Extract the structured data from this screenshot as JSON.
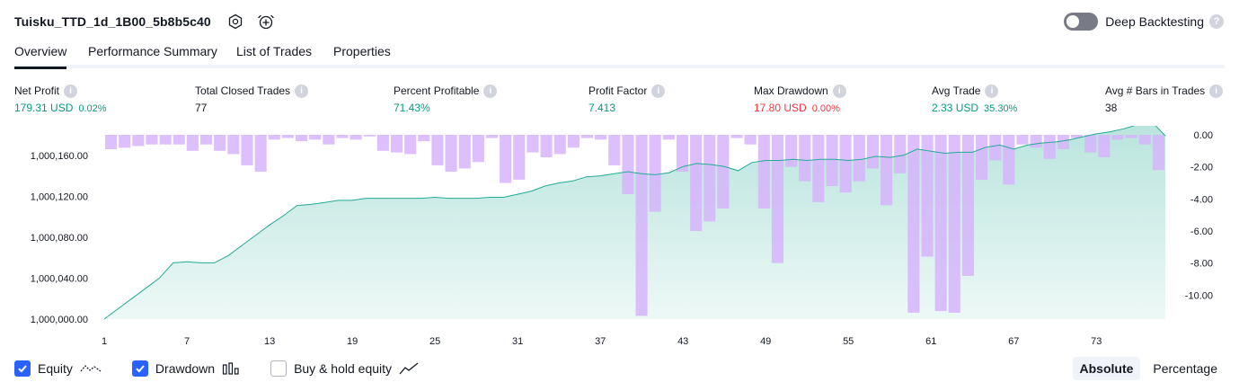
{
  "header": {
    "title": "Tuisku_TTD_1d_1B00_5b8b5c40",
    "settings_icon": "gear-icon",
    "alert_icon": "alarm-add-icon"
  },
  "deep_backtesting": {
    "label": "Deep Backtesting",
    "enabled": false,
    "help": "?"
  },
  "tabs": [
    {
      "label": "Overview",
      "active": true
    },
    {
      "label": "Performance Summary",
      "active": false
    },
    {
      "label": "List of Trades",
      "active": false
    },
    {
      "label": "Properties",
      "active": false
    }
  ],
  "metrics": {
    "net_profit": {
      "label": "Net Profit",
      "value": "179.31 USD",
      "pct": "0.02%"
    },
    "total_closed_trades": {
      "label": "Total Closed Trades",
      "value": "77"
    },
    "percent_profitable": {
      "label": "Percent Profitable",
      "value": "71.43%"
    },
    "profit_factor": {
      "label": "Profit Factor",
      "value": "7.413"
    },
    "max_drawdown": {
      "label": "Max Drawdown",
      "value": "17.80 USD",
      "pct": "0.00%"
    },
    "avg_trade": {
      "label": "Avg Trade",
      "value": "2.33 USD",
      "pct": "35.30%"
    },
    "avg_bars": {
      "label": "Avg # Bars in Trades",
      "value": "38"
    }
  },
  "colors": {
    "equity_line": "#22ab94",
    "equity_fill": "#22ab94",
    "drawdown_bar": "#d6b4fc",
    "drawdown_overlap": "#b9b6ec",
    "positive": "#089981",
    "negative": "#f23645",
    "accent": "#2962ff"
  },
  "chart_data": {
    "type": "area",
    "x_ticks": [
      "1",
      "7",
      "13",
      "19",
      "25",
      "31",
      "37",
      "43",
      "49",
      "55",
      "61",
      "67",
      "73"
    ],
    "xlim": [
      1,
      78
    ],
    "left_axis": {
      "ticks": [
        "1,000,160.00",
        "1,000,120.00",
        "1,000,080.00",
        "1,000,040.00",
        "1,000,000.00"
      ],
      "tick_values": [
        1000160,
        1000120,
        1000080,
        1000040,
        1000000
      ],
      "ylim": [
        1000000,
        1000180
      ]
    },
    "right_axis": {
      "ticks": [
        "0.00",
        "-2.00",
        "-4.00",
        "-6.00",
        "-8.00",
        "-10.00"
      ],
      "tick_values": [
        0,
        -2,
        -4,
        -6,
        -8,
        -10
      ],
      "ylim": [
        -11.5,
        0
      ]
    },
    "series": [
      {
        "name": "Equity",
        "axis": "left",
        "values": [
          1000000,
          1000010,
          1000020,
          1000030,
          1000040,
          1000055,
          1000056,
          1000055,
          1000055,
          1000062,
          1000072,
          1000082,
          1000092,
          1000101,
          1000111,
          1000112,
          1000114,
          1000116,
          1000116,
          1000118,
          1000118,
          1000118,
          1000118,
          1000118,
          1000119,
          1000118,
          1000118,
          1000118,
          1000119,
          1000119,
          1000122,
          1000125,
          1000130,
          1000133,
          1000135,
          1000139,
          1000140,
          1000142,
          1000144,
          1000142,
          1000141,
          1000143,
          1000149,
          1000152,
          1000151,
          1000149,
          1000145,
          1000153,
          1000155,
          1000155,
          1000156,
          1000155,
          1000156,
          1000156,
          1000155,
          1000156,
          1000159,
          1000158,
          1000160,
          1000166,
          1000164,
          1000162,
          1000163,
          1000163,
          1000168,
          1000170,
          1000166,
          1000170,
          1000172,
          1000173,
          1000175,
          1000178,
          1000181,
          1000183,
          1000186,
          1000190,
          1000193,
          1000179
        ]
      },
      {
        "name": "Drawdown",
        "axis": "right",
        "values": [
          -0.9,
          -0.8,
          -0.7,
          -0.6,
          -0.6,
          -0.6,
          -1.0,
          -0.6,
          -1.0,
          -1.2,
          -1.9,
          -2.3,
          -0.3,
          -0.2,
          -0.4,
          -0.3,
          -0.6,
          -0.2,
          -0.3,
          -0.1,
          -1.0,
          -1.1,
          -1.2,
          -0.4,
          -1.9,
          -2.3,
          -2.1,
          -1.7,
          -0.2,
          -3.0,
          -2.8,
          -1.1,
          -1.4,
          -1.2,
          -0.8,
          -0.2,
          -0.3,
          -1.9,
          -3.7,
          -11.3,
          -4.8,
          -0.3,
          -2.3,
          -6.0,
          -5.4,
          -4.6,
          -0.2,
          -0.6,
          -4.6,
          -8.0,
          -2.0,
          -2.9,
          -4.2,
          -3.2,
          -3.6,
          -2.9,
          -2.1,
          -4.4,
          -2.4,
          -11.1,
          -7.6,
          -11.0,
          -11.1,
          -8.8,
          -2.8,
          -1.6,
          -3.1,
          -0.6,
          -0.8,
          -1.5,
          -0.9,
          -0.2,
          -1.1,
          -1.4,
          -0.3,
          -0.2,
          -0.6,
          -2.2
        ]
      }
    ]
  },
  "legend": {
    "equity": {
      "label": "Equity",
      "checked": true,
      "icon": "equity-line-icon"
    },
    "drawdown": {
      "label": "Drawdown",
      "checked": true,
      "icon": "bar-chart-icon"
    },
    "buy_hold": {
      "label": "Buy & hold equity",
      "checked": false,
      "icon": "line-chart-icon"
    }
  },
  "mode": {
    "absolute": "Absolute",
    "percentage": "Percentage",
    "selected": "Absolute"
  }
}
